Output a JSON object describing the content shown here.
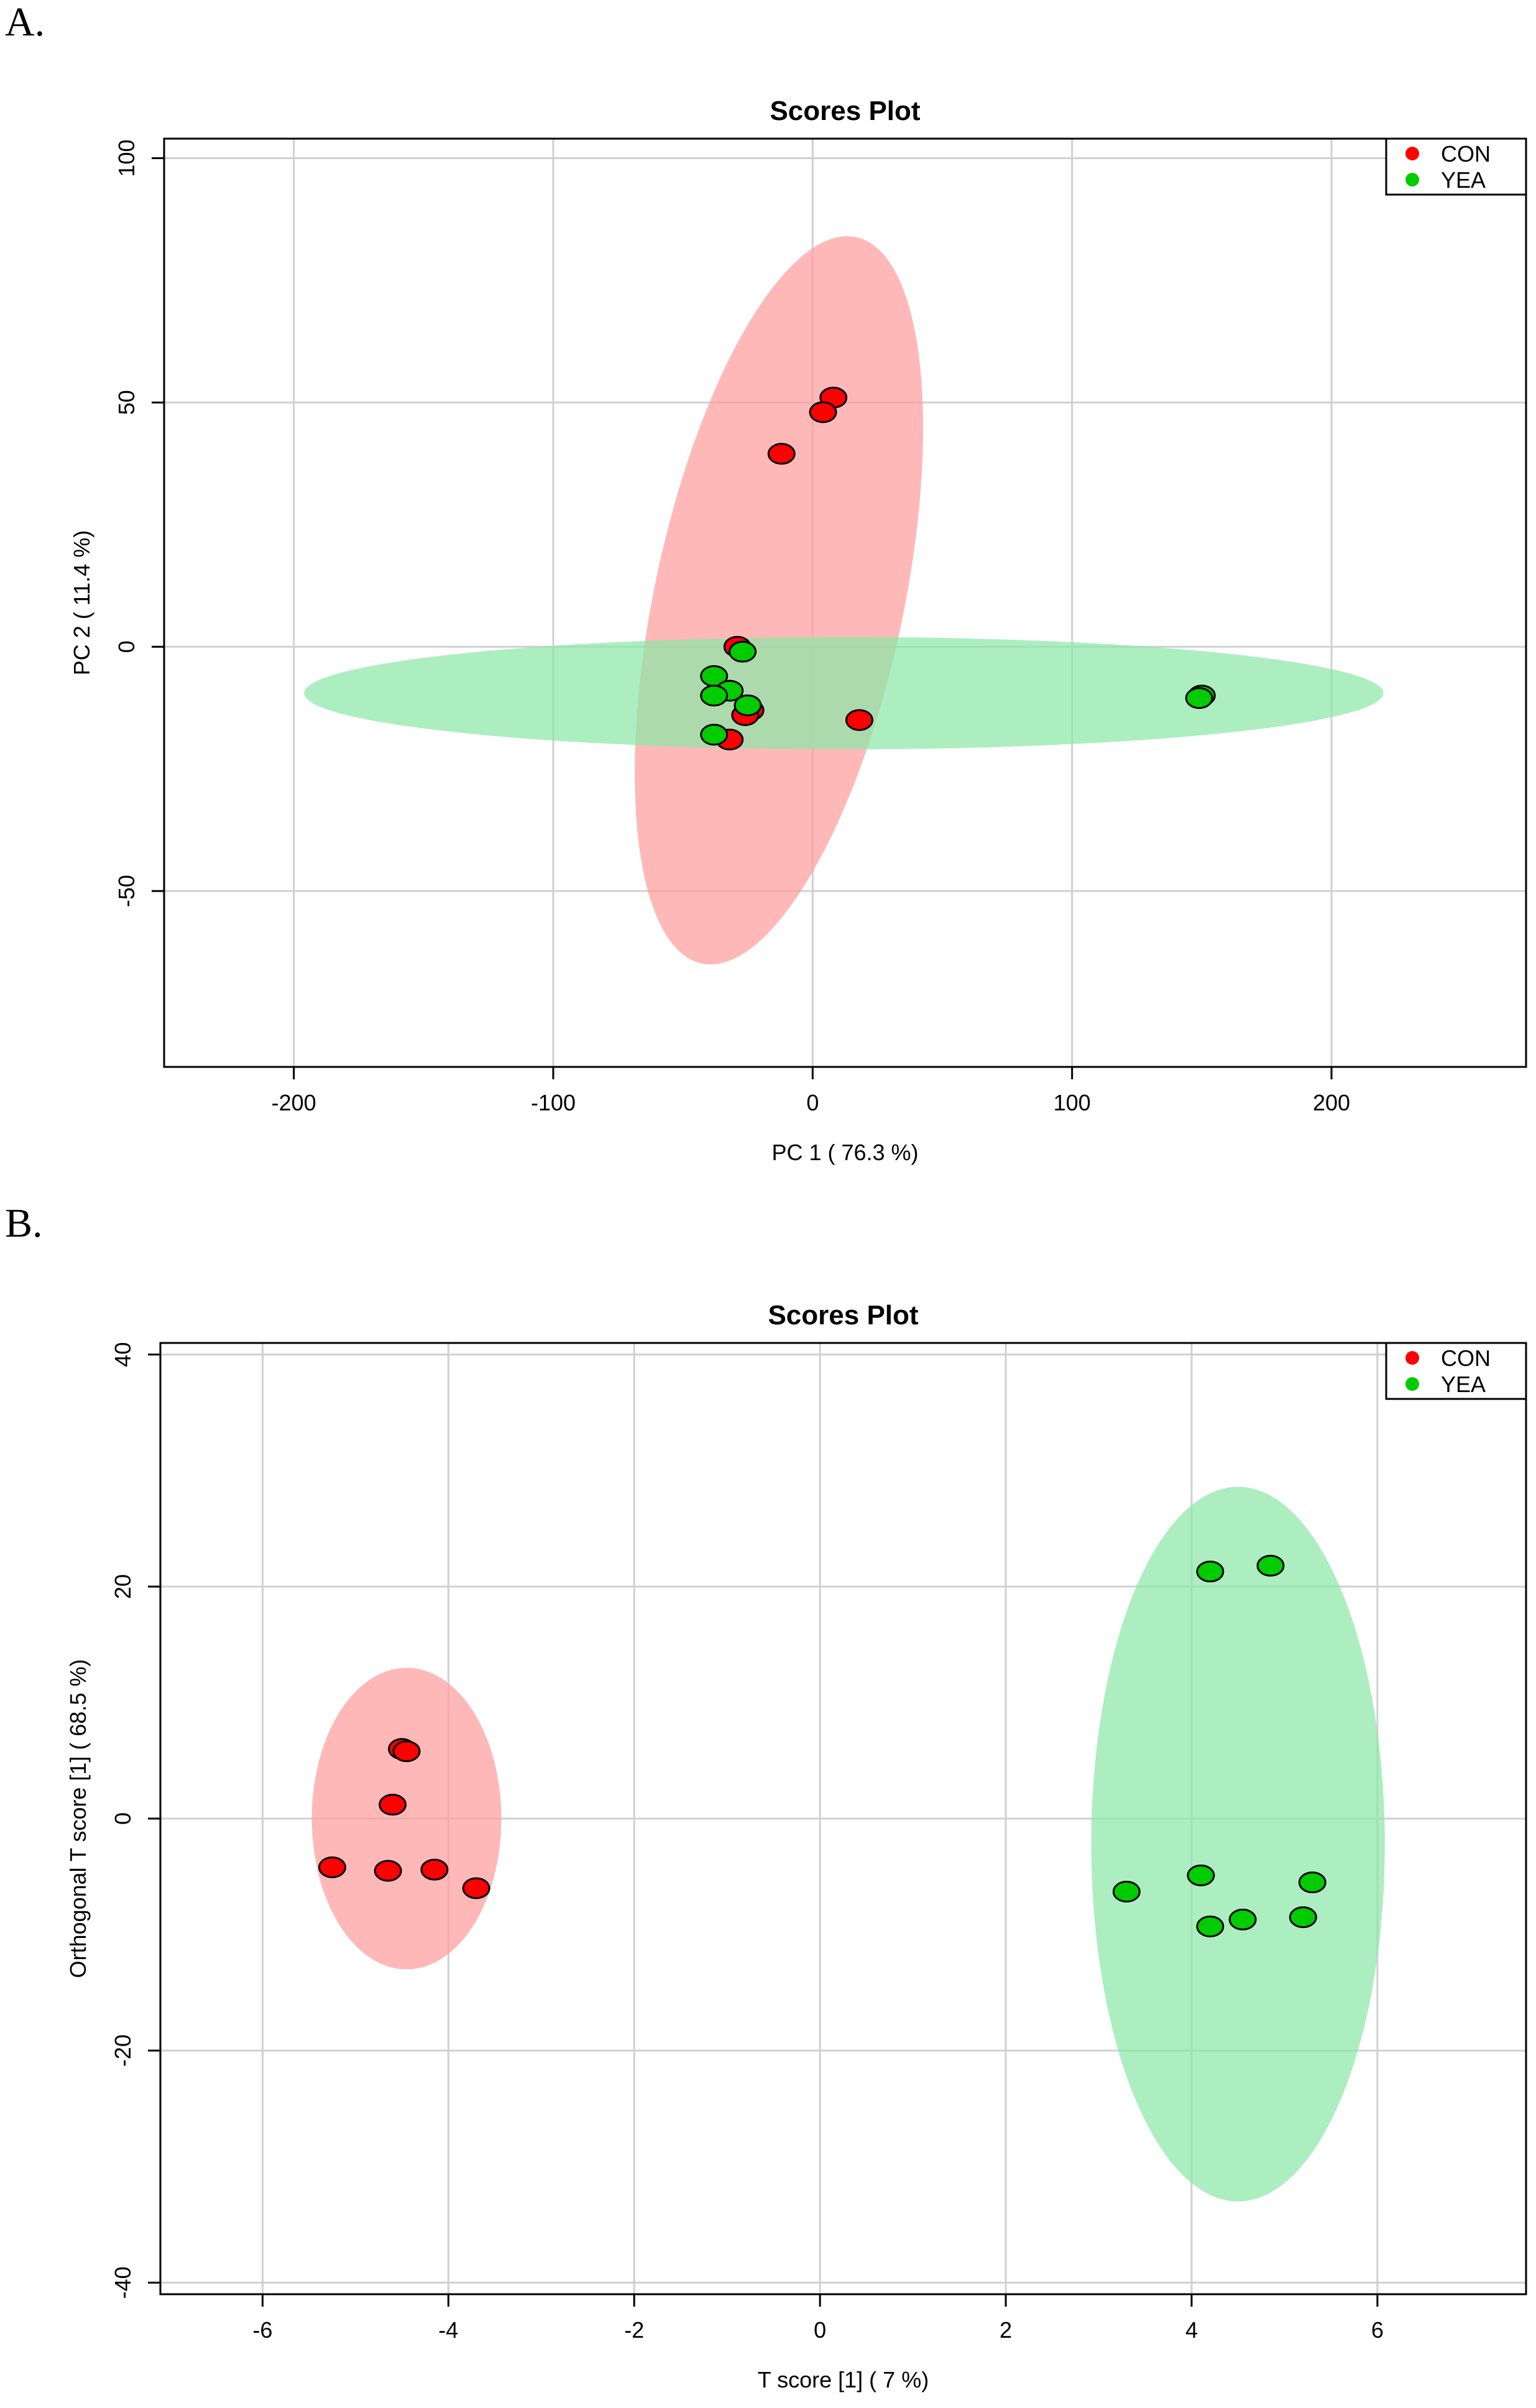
{
  "panels": [
    {
      "label": "A."
    },
    {
      "label": "B."
    }
  ],
  "colors": {
    "con": "#ff0000",
    "yea": "#00cc00",
    "con_ellipse": "#ff9c9c",
    "yea_ellipse": "#8ce8a8",
    "grid": "#d0d0d0"
  },
  "chart_data": [
    {
      "type": "scatter",
      "title": "Scores Plot",
      "xlabel": "PC 1 ( 76.3 %)",
      "ylabel": "PC 2 ( 11.4 %)",
      "xlim": [
        -250,
        275
      ],
      "ylim": [
        -86,
        104
      ],
      "xticks": [
        -200,
        -100,
        0,
        100,
        200
      ],
      "yticks": [
        100,
        50,
        0,
        -50
      ],
      "xtick_labels": [
        "-200",
        "-100",
        "0",
        "100",
        "200"
      ],
      "ytick_labels": [
        "100",
        "50",
        "0",
        "-50"
      ],
      "grid": true,
      "legend": {
        "position": "top-right",
        "entries": [
          "CON",
          "YEA"
        ]
      },
      "series": [
        {
          "name": "CON",
          "color": "con",
          "points": [
            [
              8,
              51
            ],
            [
              4,
              48
            ],
            [
              -12,
              39.5
            ],
            [
              -29,
              0
            ],
            [
              -24,
              -13
            ],
            [
              -26,
              -14
            ],
            [
              18,
              -15
            ],
            [
              -32,
              -19
            ]
          ],
          "ellipse": {
            "cx": -13,
            "cy": 9.5,
            "rx": 48,
            "ry": 76,
            "angle_deg": 12
          }
        },
        {
          "name": "YEA",
          "color": "yea",
          "points": [
            [
              -27,
              -1
            ],
            [
              -38,
              -6
            ],
            [
              -32,
              -9
            ],
            [
              -38,
              -10
            ],
            [
              -25,
              -12
            ],
            [
              -38,
              -18
            ],
            [
              150,
              -10
            ],
            [
              149,
              -10.5
            ]
          ],
          "ellipse": {
            "cx": 12,
            "cy": -9.5,
            "rx": 208,
            "ry": 11.5,
            "angle_deg": 0
          }
        }
      ]
    },
    {
      "type": "scatter",
      "title": "Scores Plot",
      "xlabel": "T score [1] ( 7 %)",
      "ylabel": "Orthogonal T score [1] ( 68.5 %)",
      "xlim": [
        -7.1,
        7.6
      ],
      "ylim": [
        -41,
        41
      ],
      "xticks": [
        -6,
        -4,
        -2,
        0,
        2,
        4,
        6
      ],
      "yticks": [
        40,
        20,
        0,
        -20,
        -40
      ],
      "xtick_labels": [
        "-6",
        "-4",
        "-2",
        "0",
        "2",
        "4",
        "6"
      ],
      "ytick_labels": [
        "40",
        "20",
        "0",
        "-20",
        "-40"
      ],
      "grid": true,
      "legend": {
        "position": "top-right",
        "entries": [
          "CON",
          "YEA"
        ]
      },
      "series": [
        {
          "name": "CON",
          "color": "con",
          "points": [
            [
              -4.5,
              6
            ],
            [
              -4.45,
              5.8
            ],
            [
              -4.6,
              1.2
            ],
            [
              -5.25,
              -4.2
            ],
            [
              -4.65,
              -4.5
            ],
            [
              -4.15,
              -4.4
            ],
            [
              -3.7,
              -6
            ]
          ],
          "ellipse": {
            "cx": -4.45,
            "cy": 0,
            "rx": 1.02,
            "ry": 13,
            "angle_deg": 0
          }
        },
        {
          "name": "YEA",
          "color": "yea",
          "points": [
            [
              4.2,
              21.3
            ],
            [
              4.85,
              21.8
            ],
            [
              3.3,
              -6.3
            ],
            [
              4.1,
              -4.9
            ],
            [
              4.2,
              -9.3
            ],
            [
              4.55,
              -8.7
            ],
            [
              5.2,
              -8.5
            ],
            [
              5.3,
              -5.5
            ]
          ],
          "ellipse": {
            "cx": 4.5,
            "cy": -2.2,
            "rx": 1.58,
            "ry": 30.8,
            "angle_deg": 0
          }
        }
      ]
    }
  ]
}
